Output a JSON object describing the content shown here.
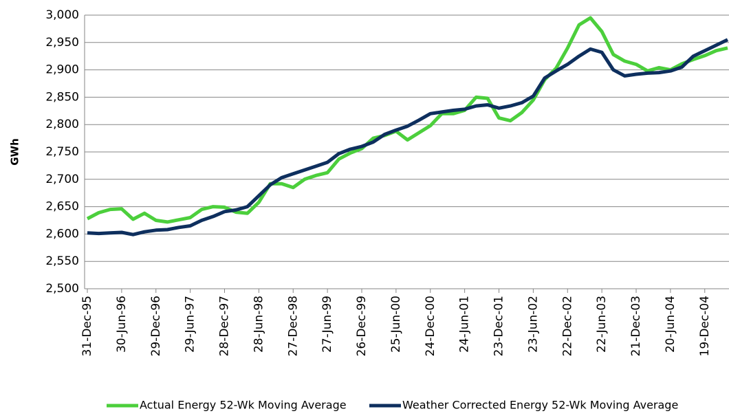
{
  "chart_data": {
    "type": "line",
    "y_label": "GWh",
    "categories": [
      "31-Dec-95",
      null,
      null,
      "30-Jun-96",
      null,
      null,
      "29-Dec-96",
      null,
      null,
      "29-Jun-97",
      null,
      null,
      "28-Dec-97",
      null,
      null,
      "28-Jun-98",
      null,
      null,
      "27-Dec-98",
      null,
      null,
      "27-Jun-99",
      null,
      null,
      "26-Dec-99",
      null,
      null,
      "25-Jun-00",
      null,
      null,
      "24-Dec-00",
      null,
      null,
      "24-Jun-01",
      null,
      null,
      "23-Dec-01",
      null,
      null,
      "23-Jun-02",
      null,
      null,
      "22-Dec-02",
      null,
      null,
      "22-Jun-03",
      null,
      null,
      "21-Dec-03",
      null,
      null,
      "20-Jun-04",
      null,
      null,
      "19-Dec-04",
      null,
      null
    ],
    "series": [
      {
        "name": "Actual Energy 52-Wk Moving Average",
        "color": "#4ccf3c",
        "values": [
          2628,
          2639,
          2645,
          2646,
          2627,
          2638,
          2625,
          2622,
          2626,
          2630,
          2645,
          2650,
          2649,
          2640,
          2638,
          2658,
          2692,
          2692,
          2685,
          2700,
          2707,
          2712,
          2737,
          2748,
          2756,
          2775,
          2780,
          2788,
          2772,
          2785,
          2798,
          2820,
          2820,
          2826,
          2850,
          2848,
          2812,
          2807,
          2822,
          2845,
          2882,
          2903,
          2940,
          2982,
          2995,
          2970,
          2928,
          2916,
          2910,
          2898,
          2904,
          2900,
          2911,
          2919,
          2926,
          2935,
          2940
        ]
      },
      {
        "name": "Weather Corrected Energy 52-Wk Moving Average",
        "color": "#0e2f5e",
        "values": [
          2602,
          2601,
          2602,
          2603,
          2599,
          2604,
          2607,
          2608,
          2612,
          2615,
          2625,
          2632,
          2641,
          2644,
          2650,
          2670,
          2690,
          2703,
          2710,
          2717,
          2724,
          2731,
          2747,
          2755,
          2760,
          2768,
          2782,
          2790,
          2797,
          2808,
          2820,
          2823,
          2826,
          2828,
          2834,
          2836,
          2830,
          2834,
          2840,
          2852,
          2885,
          2898,
          2910,
          2925,
          2938,
          2932,
          2900,
          2889,
          2892,
          2894,
          2895,
          2898,
          2905,
          2925,
          2935,
          2945,
          2955
        ]
      }
    ],
    "ylim": [
      2500,
      3000
    ],
    "yticks": [
      {
        "value": 2500,
        "label": "2,500"
      },
      {
        "value": 2550,
        "label": "2,550"
      },
      {
        "value": 2600,
        "label": "2,600"
      },
      {
        "value": 2650,
        "label": "2,650"
      },
      {
        "value": 2700,
        "label": "2,700"
      },
      {
        "value": 2750,
        "label": "2,750"
      },
      {
        "value": 2800,
        "label": "2,800"
      },
      {
        "value": 2850,
        "label": "2,850"
      },
      {
        "value": 2900,
        "label": "2,900"
      },
      {
        "value": 2950,
        "label": "2,950"
      },
      {
        "value": 3000,
        "label": "3,000"
      }
    ],
    "grid": true,
    "legend": "bottom"
  }
}
